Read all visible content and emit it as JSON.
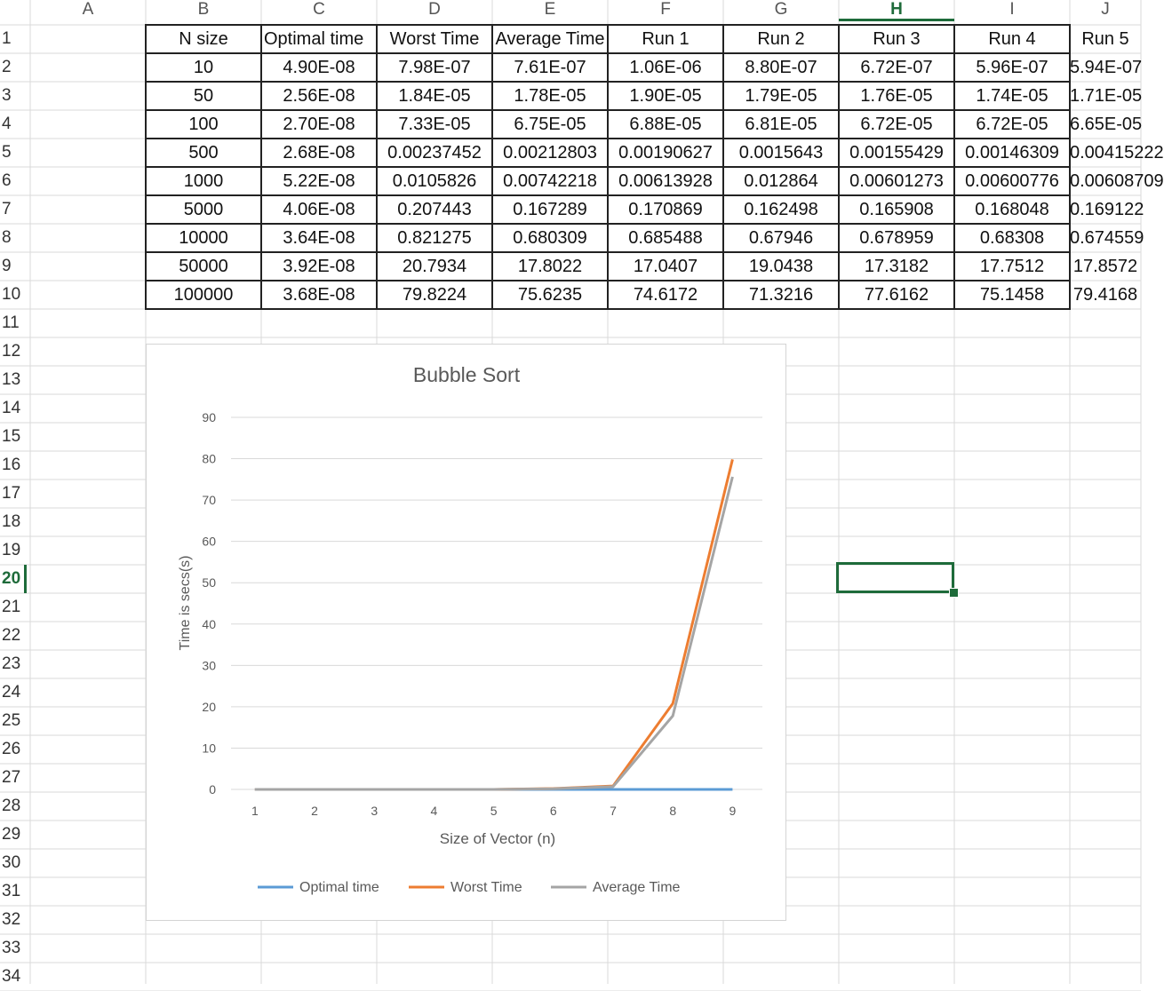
{
  "columns": [
    "A",
    "B",
    "C",
    "D",
    "E",
    "F",
    "G",
    "H",
    "I",
    "J"
  ],
  "selected_column": "H",
  "rows": [
    "1",
    "2",
    "3",
    "4",
    "5",
    "6",
    "7",
    "8",
    "9",
    "10",
    "11",
    "12",
    "13",
    "14",
    "15",
    "16",
    "17",
    "18",
    "19",
    "20",
    "21",
    "22",
    "23",
    "24",
    "25",
    "26",
    "27",
    "28",
    "29",
    "30",
    "31",
    "32",
    "33",
    "34"
  ],
  "selected_row": "20",
  "table": {
    "headers": [
      "N size",
      "Optimal time",
      "Worst Time",
      "Average Time",
      "Run 1",
      "Run 2",
      "Run 3",
      "Run 4",
      "Run 5"
    ],
    "rows": [
      [
        "10",
        "4.90E-08",
        "7.98E-07",
        "7.61E-07",
        "1.06E-06",
        "8.80E-07",
        "6.72E-07",
        "5.96E-07",
        "5.94E-07"
      ],
      [
        "50",
        "2.56E-08",
        "1.84E-05",
        "1.78E-05",
        "1.90E-05",
        "1.79E-05",
        "1.76E-05",
        "1.74E-05",
        "1.71E-05"
      ],
      [
        "100",
        "2.70E-08",
        "7.33E-05",
        "6.75E-05",
        "6.88E-05",
        "6.81E-05",
        "6.72E-05",
        "6.72E-05",
        "6.65E-05"
      ],
      [
        "500",
        "2.68E-08",
        "0.00237452",
        "0.00212803",
        "0.00190627",
        "0.0015643",
        "0.00155429",
        "0.00146309",
        "0.00415222"
      ],
      [
        "1000",
        "5.22E-08",
        "0.0105826",
        "0.00742218",
        "0.00613928",
        "0.012864",
        "0.00601273",
        "0.00600776",
        "0.00608709"
      ],
      [
        "5000",
        "4.06E-08",
        "0.207443",
        "0.167289",
        "0.170869",
        "0.162498",
        "0.165908",
        "0.168048",
        "0.169122"
      ],
      [
        "10000",
        "3.64E-08",
        "0.821275",
        "0.680309",
        "0.685488",
        "0.67946",
        "0.678959",
        "0.68308",
        "0.674559"
      ],
      [
        "50000",
        "3.92E-08",
        "20.7934",
        "17.8022",
        "17.0407",
        "19.0438",
        "17.3182",
        "17.7512",
        "17.8572"
      ],
      [
        "100000",
        "3.68E-08",
        "79.8224",
        "75.6235",
        "74.6172",
        "71.3216",
        "77.6162",
        "75.1458",
        "79.4168"
      ]
    ]
  },
  "chart_data": {
    "type": "line",
    "title": "Bubble Sort",
    "xlabel": "Size of Vector (n)",
    "ylabel": "Time is secs(s)",
    "x": [
      1,
      2,
      3,
      4,
      5,
      6,
      7,
      8,
      9
    ],
    "x_ticks": [
      "1",
      "2",
      "3",
      "4",
      "5",
      "6",
      "7",
      "8",
      "9"
    ],
    "y_ticks": [
      "0",
      "10",
      "20",
      "30",
      "40",
      "50",
      "60",
      "70",
      "80",
      "90"
    ],
    "ylim": [
      0,
      90
    ],
    "grid": true,
    "legend_position": "bottom",
    "series": [
      {
        "name": "Optimal time",
        "color": "#5b9bd5",
        "values": [
          4.9e-08,
          2.56e-08,
          2.7e-08,
          2.68e-08,
          5.22e-08,
          4.06e-08,
          3.64e-08,
          3.92e-08,
          3.68e-08
        ]
      },
      {
        "name": "Worst Time",
        "color": "#ed7d31",
        "values": [
          7.98e-07,
          1.84e-05,
          7.33e-05,
          0.00237452,
          0.0105826,
          0.207443,
          0.821275,
          20.7934,
          79.8224
        ]
      },
      {
        "name": "Average Time",
        "color": "#a5a5a5",
        "values": [
          7.61e-07,
          1.78e-05,
          6.75e-05,
          0.00212803,
          0.00742218,
          0.167289,
          0.680309,
          17.8022,
          75.6235
        ]
      }
    ]
  },
  "colors": {
    "accent": "#1e6b3a",
    "grid": "#d4d4d4",
    "table_border": "#222222"
  }
}
